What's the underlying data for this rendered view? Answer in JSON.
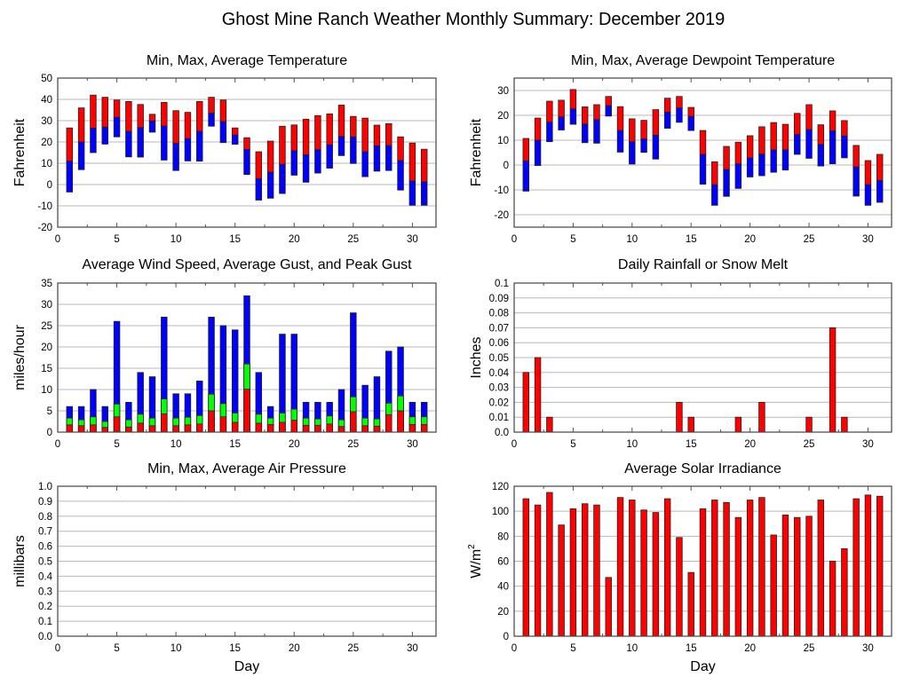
{
  "figure_title": "Ghost Mine Ranch Weather Monthly Summary: December 2019",
  "chart_data": [
    {
      "id": "temperature",
      "type": "bar",
      "subtype": "floating-range",
      "title": "Min, Max, Average Temperature",
      "xlabel": "",
      "ylabel": "Fahrenheit",
      "xlim": [
        0,
        32
      ],
      "ylim": [
        -20,
        50
      ],
      "xticks": [
        0,
        5,
        10,
        15,
        20,
        25,
        30
      ],
      "yticks": [
        -20,
        -10,
        0,
        10,
        20,
        30,
        40,
        50
      ],
      "grid": true,
      "x": [
        1,
        2,
        3,
        4,
        5,
        6,
        7,
        8,
        9,
        10,
        11,
        12,
        13,
        14,
        15,
        16,
        17,
        18,
        19,
        20,
        21,
        22,
        23,
        24,
        25,
        26,
        27,
        28,
        29,
        30,
        31
      ],
      "series": [
        {
          "name": "Min",
          "color": "#0000ff",
          "values": [
            -3.5,
            7,
            15,
            19,
            22.4,
            13,
            12.9,
            24.6,
            11.5,
            6.6,
            11.1,
            11,
            27.4,
            19.7,
            18.9,
            4.7,
            -7.3,
            -6.4,
            -4.2,
            4.4,
            1.1,
            5.4,
            7.7,
            13.6,
            9.9,
            3.7,
            6.3,
            6.6,
            -2.6,
            -9.7,
            -9.7
          ]
        },
        {
          "name": "Average",
          "color": "#0000ff",
          "values": [
            11,
            20,
            26.5,
            27,
            31.6,
            25,
            26.8,
            29.9,
            27.5,
            19.4,
            21.6,
            25,
            33.5,
            29.6,
            23.3,
            16.5,
            2.8,
            5.8,
            9.5,
            15.9,
            14,
            16.4,
            18.7,
            22.6,
            22.4,
            15.4,
            18.2,
            18.3,
            11.3,
            1.7,
            1.3
          ]
        },
        {
          "name": "Max",
          "color": "#ff0000",
          "values": [
            26.6,
            36,
            42,
            41,
            39.7,
            39,
            37.6,
            33,
            38.6,
            34.7,
            33.9,
            39,
            41,
            39.7,
            26.6,
            22,
            15.4,
            20.4,
            27.4,
            28,
            30.7,
            32.4,
            33.2,
            37.3,
            32,
            31.2,
            27.9,
            28.6,
            22.4,
            19.5,
            16.6
          ]
        }
      ]
    },
    {
      "id": "dewpoint",
      "type": "bar",
      "subtype": "floating-range",
      "title": "Min, Max, Average Dewpoint Temperature",
      "xlabel": "",
      "ylabel": "Fahrenheit",
      "xlim": [
        0,
        32
      ],
      "ylim": [
        -25,
        35
      ],
      "xticks": [
        0,
        5,
        10,
        15,
        20,
        25,
        30
      ],
      "yticks": [
        -20,
        -10,
        0,
        10,
        20,
        30
      ],
      "grid": true,
      "x": [
        1,
        2,
        3,
        4,
        5,
        6,
        7,
        8,
        9,
        10,
        11,
        12,
        13,
        14,
        15,
        16,
        17,
        18,
        19,
        20,
        21,
        22,
        23,
        24,
        25,
        26,
        27,
        28,
        29,
        30,
        31
      ],
      "series": [
        {
          "name": "Min",
          "color": "#0000ff",
          "values": [
            -10.5,
            -0.2,
            9.4,
            14.1,
            16.4,
            9,
            8.8,
            19.7,
            5.2,
            0.4,
            5.1,
            2.4,
            14.8,
            17.2,
            13.9,
            -7.7,
            -16.2,
            -12.6,
            -9.4,
            -4.8,
            -4.3,
            -2.9,
            -2,
            4.3,
            2.7,
            -0.4,
            0.5,
            2.9,
            -12.5,
            -16.2,
            -15
          ]
        },
        {
          "name": "Average",
          "color": "#0000ff",
          "values": [
            1.7,
            10,
            17.3,
            19.4,
            22.6,
            16.5,
            18.3,
            23.9,
            13.9,
            9.4,
            10.5,
            12,
            21.3,
            23,
            19.6,
            4.3,
            -7.9,
            -1.8,
            0.5,
            2.9,
            4.4,
            6.1,
            6.1,
            12.3,
            14.3,
            8.3,
            13.8,
            11.7,
            -0.7,
            -7.9,
            -6.2
          ]
        },
        {
          "name": "Max",
          "color": "#ff0000",
          "values": [
            10.7,
            18.9,
            25.7,
            26.1,
            30.4,
            23.4,
            24.3,
            27.6,
            23.5,
            18.6,
            18,
            22.3,
            26.9,
            27.6,
            23.2,
            13.9,
            1.3,
            7.5,
            9.2,
            11.8,
            15.4,
            17.1,
            16.4,
            20.8,
            24.3,
            16.2,
            21.8,
            17.9,
            7.9,
            1.8,
            4.3
          ]
        }
      ]
    },
    {
      "id": "wind",
      "type": "bar",
      "subtype": "overlaid",
      "title": "Average Wind Speed, Average Gust, and Peak Gust",
      "xlabel": "",
      "ylabel": "miles/hour",
      "xlim": [
        0,
        32
      ],
      "ylim": [
        0,
        35
      ],
      "xticks": [
        0,
        5,
        10,
        15,
        20,
        25,
        30
      ],
      "yticks": [
        0,
        5,
        10,
        15,
        20,
        25,
        30,
        35
      ],
      "grid": true,
      "x": [
        1,
        2,
        3,
        4,
        5,
        6,
        7,
        8,
        9,
        10,
        11,
        12,
        13,
        14,
        15,
        16,
        17,
        18,
        19,
        20,
        21,
        22,
        23,
        24,
        25,
        26,
        27,
        28,
        29,
        30,
        31
      ],
      "series": [
        {
          "name": "Peak Gust",
          "color": "#0000ff",
          "values": [
            6,
            6,
            10,
            6,
            26,
            7,
            14,
            13,
            27,
            9,
            9,
            12,
            27,
            25,
            24,
            32,
            14,
            6,
            23,
            23,
            7,
            7,
            7,
            10,
            28,
            11,
            13,
            19,
            20,
            7,
            7
          ]
        },
        {
          "name": "Average Gust",
          "color": "#00ff00",
          "values": [
            3.3,
            2.9,
            3.6,
            2.5,
            6.6,
            2.9,
            4.2,
            3.3,
            7.8,
            3.3,
            3.5,
            3.9,
            8.9,
            6.7,
            4.5,
            16,
            4.2,
            3.3,
            4.5,
            5.4,
            3.3,
            3.1,
            3.8,
            2.9,
            8.3,
            3.3,
            3.1,
            6.8,
            8.5,
            3.6,
            3.6
          ]
        },
        {
          "name": "Average Wind Speed",
          "color": "#ff0000",
          "values": [
            1.7,
            1.5,
            1.7,
            1.1,
            3.6,
            1.2,
            2.1,
            1.5,
            4.3,
            1.5,
            1.7,
            1.9,
            5,
            3.6,
            2.3,
            10.1,
            2.1,
            1.8,
            2.3,
            2.8,
            1.6,
            1.6,
            1.9,
            1.3,
            4.8,
            1.5,
            1.4,
            4.1,
            5,
            1.8,
            1.8
          ]
        }
      ]
    },
    {
      "id": "rainfall",
      "type": "bar",
      "title": "Daily Rainfall or Snow Melt",
      "xlabel": "",
      "ylabel": "Inches",
      "xlim": [
        0,
        32
      ],
      "ylim": [
        0,
        0.1
      ],
      "xticks": [
        0,
        5,
        10,
        15,
        20,
        25,
        30
      ],
      "yticks": [
        0,
        0.01,
        0.02,
        0.03,
        0.04,
        0.05,
        0.06,
        0.07,
        0.08,
        0.09,
        0.1
      ],
      "ytick_labels": [
        "0.0",
        "0.01",
        "0.02",
        "0.03",
        "0.04",
        "0.05",
        "0.06",
        "0.07",
        "0.08",
        "0.09",
        "0.1"
      ],
      "grid": true,
      "x": [
        1,
        2,
        3,
        4,
        5,
        6,
        7,
        8,
        9,
        10,
        11,
        12,
        13,
        14,
        15,
        16,
        17,
        18,
        19,
        20,
        21,
        22,
        23,
        24,
        25,
        26,
        27,
        28,
        29,
        30,
        31
      ],
      "series": [
        {
          "name": "Rainfall",
          "color": "#ff0000",
          "values": [
            0.04,
            0.05,
            0.01,
            0,
            0,
            0,
            0,
            0,
            0,
            0,
            0,
            0,
            0,
            0.02,
            0.01,
            0,
            0,
            0,
            0.01,
            0,
            0.02,
            0,
            0,
            0,
            0.01,
            0,
            0.07,
            0.01,
            0,
            0,
            0
          ]
        }
      ]
    },
    {
      "id": "pressure",
      "type": "bar",
      "subtype": "floating-range",
      "title": "Min, Max, Average Air Pressure",
      "xlabel": "Day",
      "ylabel": "millibars",
      "xlim": [
        0,
        32
      ],
      "ylim": [
        0,
        1.0
      ],
      "xticks": [
        0,
        5,
        10,
        15,
        20,
        25,
        30
      ],
      "yticks": [
        0,
        0.1,
        0.2,
        0.3,
        0.4,
        0.5,
        0.6,
        0.7,
        0.8,
        0.9,
        1.0
      ],
      "ytick_labels": [
        "0.0",
        "0.1",
        "0.2",
        "0.3",
        "0.4",
        "0.5",
        "0.6",
        "0.7",
        "0.8",
        "0.9",
        "1.0"
      ],
      "grid": true,
      "x": [],
      "series": []
    },
    {
      "id": "solar",
      "type": "bar",
      "title": "Average Solar Irradiance",
      "xlabel": "Day",
      "ylabel": "W/m",
      "ylabel_superscript": "2",
      "xlim": [
        0,
        32
      ],
      "ylim": [
        0,
        120
      ],
      "xticks": [
        0,
        5,
        10,
        15,
        20,
        25,
        30
      ],
      "yticks": [
        0,
        20,
        40,
        60,
        80,
        100,
        120
      ],
      "grid": true,
      "x": [
        1,
        2,
        3,
        4,
        5,
        6,
        7,
        8,
        9,
        10,
        11,
        12,
        13,
        14,
        15,
        16,
        17,
        18,
        19,
        20,
        21,
        22,
        23,
        24,
        25,
        26,
        27,
        28,
        29,
        30,
        31
      ],
      "series": [
        {
          "name": "Solar Irradiance",
          "color": "#ff0000",
          "values": [
            110,
            105,
            115,
            89,
            102,
            106,
            105,
            47,
            111,
            109,
            101,
            99,
            110,
            79,
            51,
            102,
            109,
            107,
            95,
            109,
            111,
            81,
            97,
            95,
            96,
            109,
            60,
            70,
            110,
            113,
            112
          ]
        }
      ]
    }
  ]
}
